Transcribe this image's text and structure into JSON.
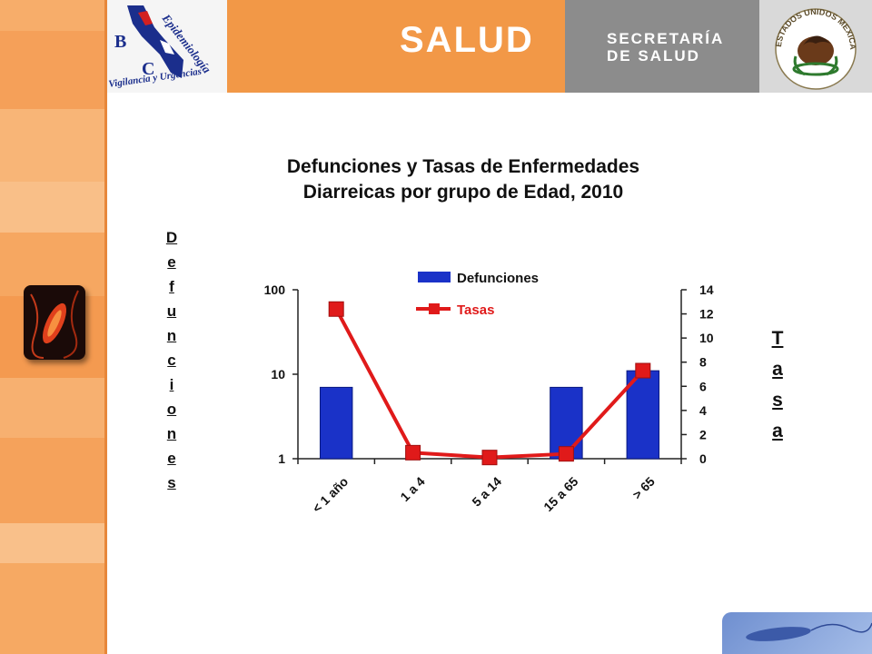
{
  "header": {
    "logo_title": "Epidemiología",
    "logo_subtitle": "Vigilancia y Urgencias",
    "logo_letters": [
      "B",
      "C"
    ],
    "salud_label": "SALUD",
    "secretaria_line1": "SECRETARÍA",
    "secretaria_line2": "DE SALUD",
    "seal_text": "ESTADOS UNIDOS MEXICANOS"
  },
  "colors": {
    "bar": "#1a32c8",
    "line": "#e01a1a",
    "header_orange": "#f29847",
    "header_gray": "#8c8c8c"
  },
  "chart_data": {
    "type": "bar",
    "title_line1": "Defunciones y Tasas de Enfermedades",
    "title_line2": "Diarreicas por grupo de Edad, 2010",
    "ylabel_left": "Defunciones",
    "ylabel_right": "Tasa",
    "categories": [
      "< 1 año",
      "1 a 4",
      "5 a 14",
      "15 a 65",
      "> 65"
    ],
    "y_scale": "log",
    "ylim": [
      1,
      100
    ],
    "y_ticks": [
      "1",
      "10",
      "100"
    ],
    "y2lim": [
      0,
      14
    ],
    "y2_ticks": [
      "0",
      "2",
      "4",
      "6",
      "8",
      "10",
      "12",
      "14"
    ],
    "legend_position": "top",
    "series": [
      {
        "name": "Defunciones",
        "type": "bar",
        "axis": "left",
        "values": [
          7,
          1,
          1,
          7,
          11
        ]
      },
      {
        "name": "Tasas",
        "type": "line",
        "axis": "right",
        "values": [
          12.4,
          0.5,
          0.1,
          0.4,
          7.3
        ]
      }
    ]
  }
}
